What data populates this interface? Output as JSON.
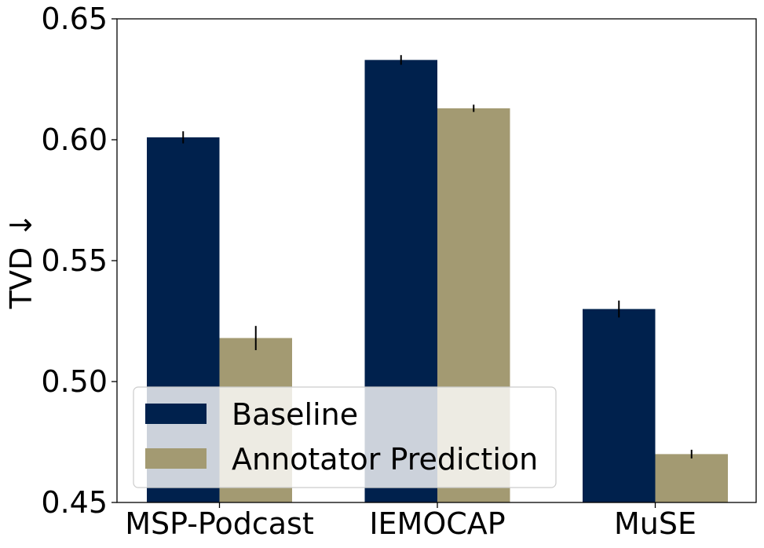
{
  "chart_data": {
    "type": "bar",
    "title": "",
    "xlabel": "",
    "ylabel": "TVD ↓",
    "ylim": [
      0.45,
      0.65
    ],
    "yticks": [
      "0.45",
      "0.50",
      "0.55",
      "0.60",
      "0.65"
    ],
    "categories": [
      "MSP-Podcast",
      "IEMOCAP",
      "MuSE"
    ],
    "series": [
      {
        "name": "Baseline",
        "color": "#00214d",
        "values": [
          0.601,
          0.633,
          0.53
        ],
        "errors": [
          0.0025,
          0.002,
          0.0035
        ]
      },
      {
        "name": "Annotator Prediction",
        "color": "#a39a72",
        "values": [
          0.518,
          0.613,
          0.47
        ],
        "errors": [
          0.005,
          0.0015,
          0.0018
        ]
      }
    ],
    "legend_position": "lower-left",
    "grid": false
  }
}
